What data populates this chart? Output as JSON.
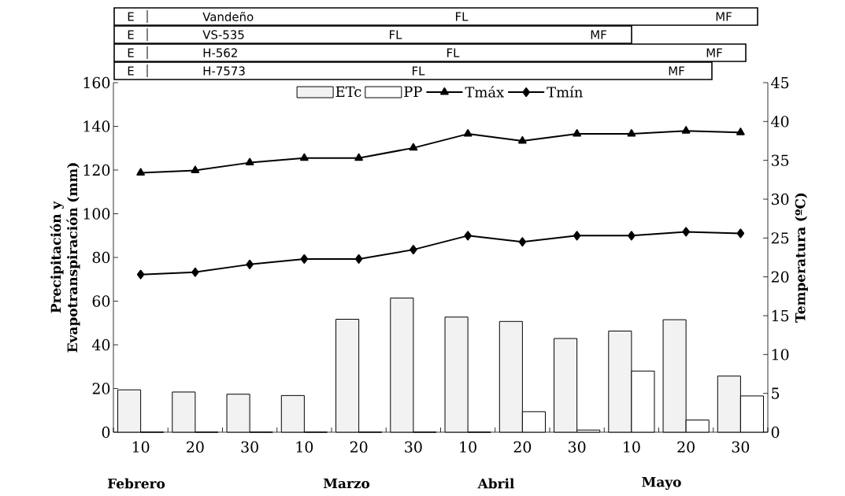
{
  "chart_data": {
    "type": "bar",
    "categories": [
      "10",
      "20",
      "30",
      "10",
      "20",
      "30",
      "10",
      "20",
      "30",
      "10",
      "20",
      "30"
    ],
    "series": [
      {
        "name": "ETc",
        "color": "#f2f2f2",
        "values": [
          19.4,
          18.4,
          17.4,
          16.8,
          51.7,
          61.4,
          52.7,
          50.7,
          42.9,
          46.3,
          51.5,
          25.7
        ]
      },
      {
        "name": "PP",
        "color": "#ffffff",
        "values": [
          0,
          0,
          0,
          0,
          0,
          0,
          0,
          9.4,
          1.0,
          28.0,
          5.6,
          16.6
        ]
      },
      {
        "name": "Tmáx",
        "type": "line",
        "axis": "y2",
        "marker": "triangle",
        "color": "#000000",
        "values": [
          33.4,
          33.7,
          34.7,
          35.3,
          35.3,
          36.6,
          38.4,
          37.5,
          38.4,
          38.4,
          38.8,
          38.6
        ]
      },
      {
        "name": "Tmín",
        "type": "line",
        "axis": "y2",
        "marker": "diamond",
        "color": "#000000",
        "values": [
          20.3,
          20.6,
          21.6,
          22.3,
          22.3,
          23.5,
          25.3,
          24.5,
          25.3,
          25.3,
          25.8,
          25.6
        ]
      }
    ],
    "ylabel": "Precipitación y Evapotranspiración (mm)",
    "y2label": "Temperatura (ºC)",
    "ylim": [
      0,
      160
    ],
    "yticks": [
      0,
      20,
      40,
      60,
      80,
      100,
      120,
      140,
      160
    ],
    "y2lim": [
      0,
      45
    ],
    "y2ticks": [
      0,
      5,
      10,
      15,
      20,
      25,
      30,
      35,
      40,
      45
    ],
    "legend": "top",
    "line_style": "solid",
    "annotations": [
      "E",
      "Vandeño",
      "FL",
      "MF",
      "E",
      "VS-535",
      "FL",
      "MF",
      "E",
      "H-562",
      "FL",
      "MF",
      "E",
      "H-7573",
      "FL",
      "MF",
      "Febrero",
      "Marzo",
      "Abril",
      "Mayo"
    ]
  }
}
